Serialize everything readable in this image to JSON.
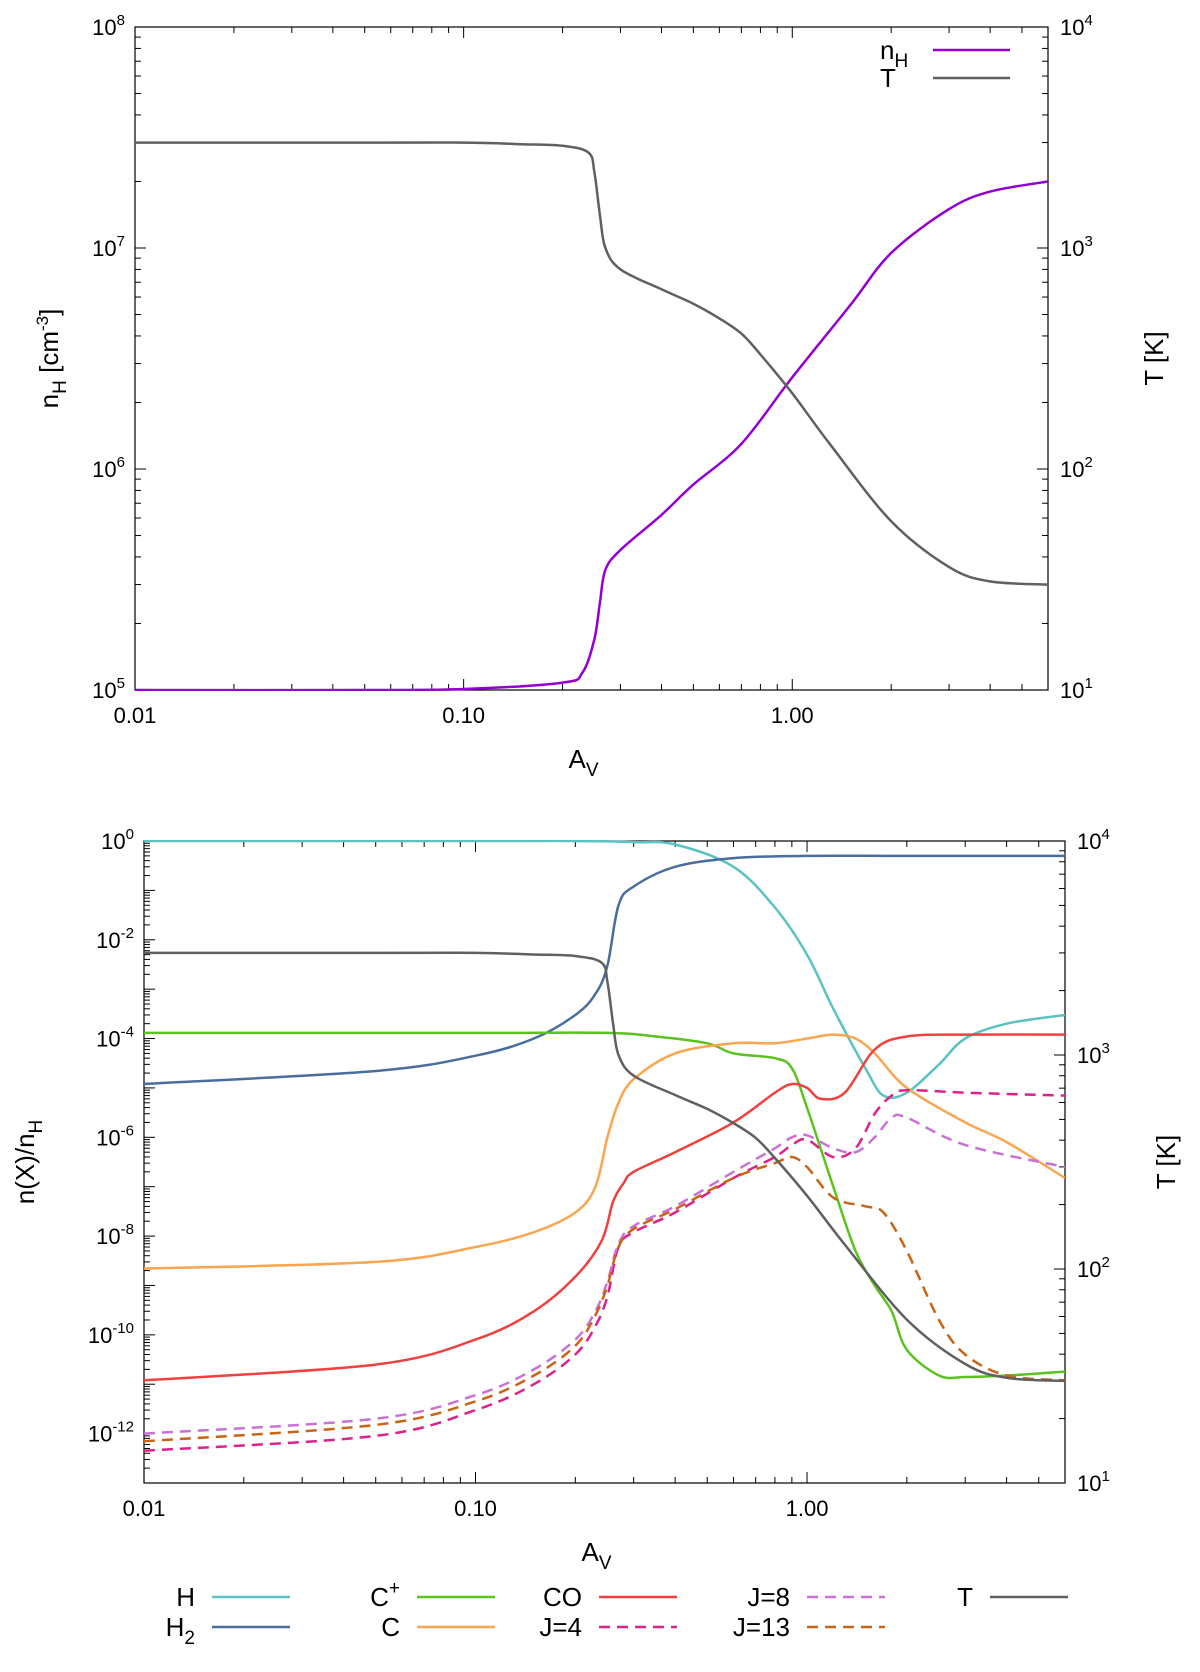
{
  "chart_data": [
    {
      "type": "line",
      "panel": "top",
      "xlabel": "A",
      "xlabel_sub": "V",
      "xscale": "log",
      "xlim": [
        0.01,
        6.0
      ],
      "x_ticks": [
        {
          "value": 0.01,
          "label": "0.01"
        },
        {
          "value": 0.1,
          "label": "0.10"
        },
        {
          "value": 1.0,
          "label": "1.00"
        }
      ],
      "ylabel": {
        "main": "n",
        "sub": "H",
        "unit_open": " [cm",
        "unit_sup": "-3",
        "unit_close": "]"
      },
      "yscale": "log",
      "ylim": [
        100000,
        100000000
      ],
      "y_ticks": [
        {
          "value": 100000,
          "base": "10",
          "exp": "5"
        },
        {
          "value": 1000000,
          "base": "10",
          "exp": "6"
        },
        {
          "value": 10000000,
          "base": "10",
          "exp": "7"
        },
        {
          "value": 100000000,
          "base": "10",
          "exp": "8"
        }
      ],
      "y2label": "T  [K]",
      "y2scale": "log",
      "y2lim": [
        10,
        10000
      ],
      "y2_ticks": [
        {
          "value": 10,
          "base": "10",
          "exp": "1"
        },
        {
          "value": 100,
          "base": "10",
          "exp": "2"
        },
        {
          "value": 1000,
          "base": "10",
          "exp": "3"
        },
        {
          "value": 10000,
          "base": "10",
          "exp": "4"
        }
      ],
      "legend_position": "top-right",
      "series": [
        {
          "name": "n",
          "name_sub": "H",
          "axis": "y",
          "color": "#9400d3",
          "x": [
            0.01,
            0.05,
            0.1,
            0.2,
            0.23,
            0.25,
            0.26,
            0.27,
            0.3,
            0.4,
            0.5,
            0.7,
            1.0,
            1.5,
            2.0,
            3.0,
            4.0,
            6.0
          ],
          "y": [
            100000,
            100000,
            101000,
            108000,
            120000,
            170000,
            250000,
            350000,
            430000,
            620000,
            850000,
            1300000,
            2600000,
            5500000,
            9500000,
            15000000,
            18000000,
            20000000
          ]
        },
        {
          "name": "T",
          "axis": "y2",
          "color": "#606060",
          "x": [
            0.01,
            0.05,
            0.1,
            0.15,
            0.2,
            0.24,
            0.25,
            0.26,
            0.27,
            0.3,
            0.4,
            0.5,
            0.6,
            0.7,
            0.8,
            1.0,
            1.3,
            2.0,
            3.0,
            4.0,
            6.0
          ],
          "y": [
            3000,
            3000,
            3000,
            2950,
            2900,
            2700,
            2200,
            1400,
            1000,
            800,
            650,
            560,
            480,
            410,
            330,
            220,
            130,
            58,
            36,
            31,
            30
          ]
        }
      ]
    },
    {
      "type": "line",
      "panel": "bottom",
      "xlabel": "A",
      "xlabel_sub": "V",
      "xscale": "log",
      "xlim": [
        0.01,
        6.0
      ],
      "x_ticks": [
        {
          "value": 0.01,
          "label": "0.01"
        },
        {
          "value": 0.1,
          "label": "0.10"
        },
        {
          "value": 1.0,
          "label": "1.00"
        }
      ],
      "ylabel": {
        "main": "n(X)/n",
        "sub": "H"
      },
      "yscale": "log",
      "ylim": [
        1e-13,
        1
      ],
      "y_ticks": [
        {
          "value": 1,
          "base": "10",
          "exp": "0"
        },
        {
          "value": 0.01,
          "base": "10",
          "exp": "-2"
        },
        {
          "value": 0.0001,
          "base": "10",
          "exp": "-4"
        },
        {
          "value": 1e-06,
          "base": "10",
          "exp": "-6"
        },
        {
          "value": 1e-08,
          "base": "10",
          "exp": "-8"
        },
        {
          "value": 1e-10,
          "base": "10",
          "exp": "-10"
        },
        {
          "value": 1e-12,
          "base": "10",
          "exp": "-12"
        }
      ],
      "y2label": "T  [K]",
      "y2scale": "log",
      "y2lim": [
        10,
        10000
      ],
      "y2_ticks": [
        {
          "value": 10,
          "base": "10",
          "exp": "1"
        },
        {
          "value": 100,
          "base": "10",
          "exp": "2"
        },
        {
          "value": 1000,
          "base": "10",
          "exp": "3"
        },
        {
          "value": 10000,
          "base": "10",
          "exp": "4"
        }
      ],
      "legend_position": "bottom-outside",
      "series": [
        {
          "name": "H",
          "axis": "y",
          "color": "#5bc2c2",
          "dash": false,
          "x": [
            0.01,
            0.1,
            0.2,
            0.3,
            0.4,
            0.6,
            0.8,
            1.0,
            1.2,
            1.5,
            1.7,
            2.0,
            2.5,
            3.0,
            4.0,
            6.0
          ],
          "y": [
            1,
            1,
            1,
            0.95,
            0.85,
            0.3,
            0.045,
            0.005,
            0.0004,
            2.5e-05,
            7e-06,
            8e-06,
            3e-05,
            0.0001,
            0.0002,
            0.0003
          ]
        },
        {
          "name": "H",
          "name_sub": "2",
          "axis": "y",
          "color": "#4a6e9b",
          "dash": false,
          "x": [
            0.01,
            0.05,
            0.1,
            0.15,
            0.2,
            0.23,
            0.25,
            0.27,
            0.3,
            0.4,
            0.6,
            1.0,
            2.0,
            6.0
          ],
          "y": [
            1.2e-05,
            2.2e-05,
            4.5e-05,
            0.0001,
            0.0003,
            0.0008,
            0.003,
            0.05,
            0.12,
            0.3,
            0.45,
            0.5,
            0.5,
            0.5
          ]
        },
        {
          "name": "C",
          "name_sup": "+",
          "axis": "y",
          "color": "#5cc21f",
          "dash": false,
          "x": [
            0.01,
            0.1,
            0.25,
            0.35,
            0.5,
            0.6,
            0.8,
            0.9,
            1.0,
            1.2,
            1.4,
            1.6,
            1.8,
            2.0,
            2.5,
            3.0,
            4.0,
            6.0
          ],
          "y": [
            0.00013,
            0.00013,
            0.00013,
            0.00011,
            8e-05,
            5e-05,
            4e-05,
            2.5e-05,
            4e-06,
            1e-07,
            5e-09,
            1e-09,
            3e-10,
            5e-11,
            1.5e-11,
            1.4e-11,
            1.5e-11,
            1.8e-11
          ]
        },
        {
          "name": "C",
          "axis": "y",
          "color": "#f8a650",
          "dash": false,
          "x": [
            0.01,
            0.05,
            0.1,
            0.15,
            0.2,
            0.23,
            0.25,
            0.27,
            0.3,
            0.4,
            0.6,
            0.8,
            1.0,
            1.2,
            1.4,
            1.6,
            2.0,
            3.0,
            4.0,
            6.0
          ],
          "y": [
            2.2e-09,
            3e-09,
            6e-09,
            1.2e-08,
            3e-08,
            1e-07,
            1e-06,
            5e-06,
            1.5e-05,
            5e-05,
            8e-05,
            8e-05,
            0.0001,
            0.00012,
            0.0001,
            5e-05,
            1e-05,
            2e-06,
            8e-07,
            1.5e-07
          ]
        },
        {
          "name": "CO",
          "axis": "y",
          "color": "#f04040",
          "dash": false,
          "x": [
            0.01,
            0.05,
            0.1,
            0.15,
            0.2,
            0.24,
            0.26,
            0.28,
            0.3,
            0.4,
            0.6,
            0.8,
            0.9,
            1.0,
            1.1,
            1.3,
            1.6,
            2.0,
            3.0,
            6.0
          ],
          "y": [
            1.2e-11,
            2.5e-11,
            8e-11,
            3e-10,
            1.5e-09,
            8e-09,
            5e-08,
            1.2e-07,
            2e-07,
            5e-07,
            2e-06,
            8e-06,
            1.2e-05,
            1e-05,
            6e-06,
            8e-06,
            6e-05,
            0.00011,
            0.00012,
            0.00012
          ]
        },
        {
          "name": "J=4",
          "axis": "y",
          "color": "#e0208a",
          "dash": true,
          "x": [
            0.01,
            0.05,
            0.1,
            0.15,
            0.2,
            0.23,
            0.25,
            0.27,
            0.3,
            0.4,
            0.6,
            0.8,
            0.9,
            1.0,
            1.2,
            1.4,
            1.6,
            1.8,
            2.0,
            3.0,
            6.0
          ],
          "y": [
            4.5e-13,
            9e-13,
            3e-12,
            1e-11,
            4e-11,
            1.5e-10,
            6e-10,
            6e-09,
            1.2e-08,
            3e-08,
            1.5e-07,
            4e-07,
            7e-07,
            9e-07,
            4e-07,
            6e-07,
            3e-06,
            7e-06,
            9e-06,
            8e-06,
            7e-06
          ]
        },
        {
          "name": "J=8",
          "axis": "y",
          "color": "#c873d4",
          "dash": true,
          "x": [
            0.01,
            0.05,
            0.1,
            0.15,
            0.2,
            0.23,
            0.25,
            0.27,
            0.3,
            0.4,
            0.6,
            0.8,
            0.9,
            1.0,
            1.2,
            1.4,
            1.6,
            1.8,
            2.0,
            3.0,
            6.0
          ],
          "y": [
            1e-12,
            2e-12,
            6e-12,
            2e-11,
            8e-11,
            3e-10,
            1.2e-09,
            7e-09,
            1.6e-08,
            4e-08,
            2e-07,
            6e-07,
            1e-06,
            1.1e-06,
            6e-07,
            5e-07,
            1e-06,
            2.5e-06,
            2.5e-06,
            7e-07,
            2.5e-07
          ]
        },
        {
          "name": "J=13",
          "axis": "y",
          "color": "#c86414",
          "dash": true,
          "x": [
            0.01,
            0.05,
            0.1,
            0.15,
            0.2,
            0.23,
            0.25,
            0.27,
            0.3,
            0.4,
            0.6,
            0.8,
            0.9,
            1.0,
            1.2,
            1.5,
            1.7,
            2.0,
            2.5,
            3.0,
            4.0,
            6.0
          ],
          "y": [
            7e-13,
            1.5e-12,
            4.5e-12,
            1.5e-11,
            6e-11,
            2.5e-10,
            1e-09,
            6e-09,
            1.4e-08,
            3.5e-08,
            1.5e-07,
            3e-07,
            4e-07,
            2.5e-07,
            6e-08,
            4e-08,
            3e-08,
            5e-09,
            2e-10,
            4e-11,
            1.5e-11,
            1.2e-11
          ]
        },
        {
          "name": "T",
          "axis": "y2",
          "color": "#606060",
          "dash": false,
          "x": [
            0.01,
            0.05,
            0.1,
            0.15,
            0.2,
            0.24,
            0.25,
            0.26,
            0.27,
            0.3,
            0.4,
            0.5,
            0.6,
            0.7,
            0.8,
            1.0,
            1.3,
            2.0,
            3.0,
            4.0,
            6.0
          ],
          "y": [
            3000,
            3000,
            3000,
            2950,
            2900,
            2700,
            2200,
            1400,
            1000,
            800,
            650,
            560,
            480,
            410,
            330,
            220,
            130,
            58,
            36,
            31,
            30
          ]
        }
      ]
    }
  ]
}
